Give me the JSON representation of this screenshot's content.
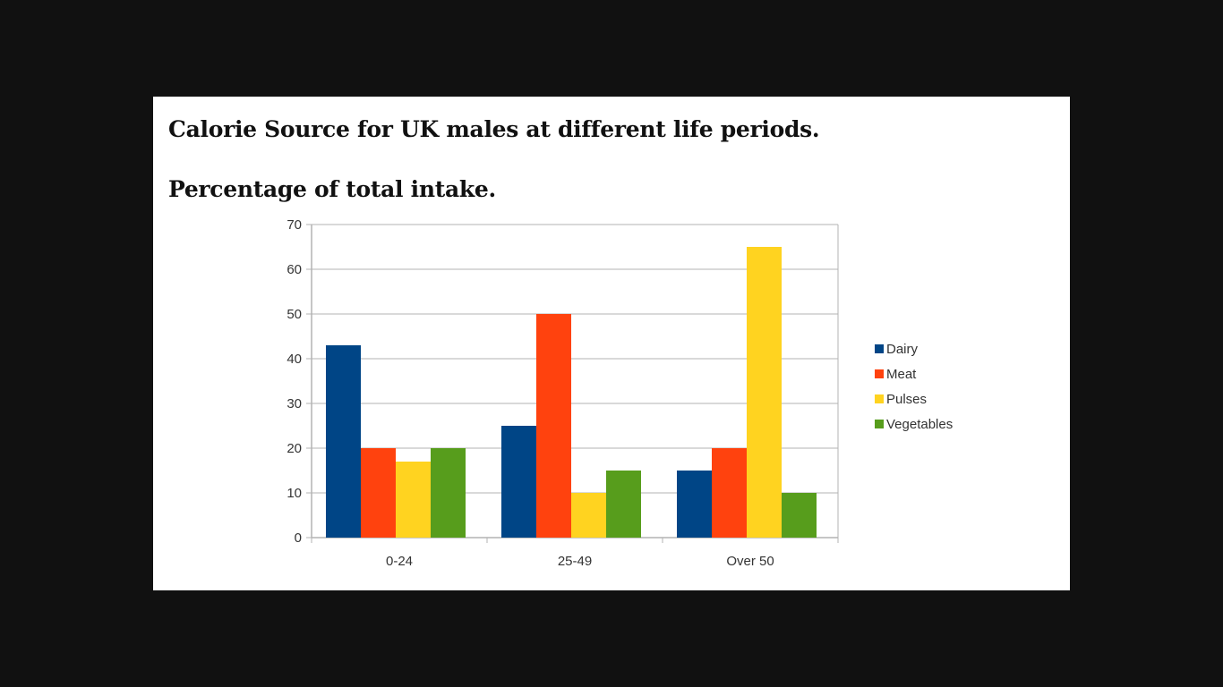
{
  "title": "Calorie Source for UK males at different life periods.",
  "subtitle": "Percentage of total intake.",
  "chart_data": {
    "type": "bar",
    "title": "",
    "xlabel": "",
    "ylabel": "",
    "categories": [
      "0-24",
      "25-49",
      "Over 50"
    ],
    "series": [
      {
        "name": "Dairy",
        "color": "#004586",
        "values": [
          43,
          25,
          15
        ]
      },
      {
        "name": "Meat",
        "color": "#ff420e",
        "values": [
          20,
          50,
          20
        ]
      },
      {
        "name": "Pulses",
        "color": "#ffd320",
        "values": [
          17,
          10,
          65
        ]
      },
      {
        "name": "Vegetables",
        "color": "#579d1c",
        "values": [
          20,
          15,
          10
        ]
      }
    ],
    "ylim": [
      0,
      70
    ],
    "yticks": [
      0,
      10,
      20,
      30,
      40,
      50,
      60,
      70
    ],
    "grid": true,
    "legend_position": "right"
  }
}
